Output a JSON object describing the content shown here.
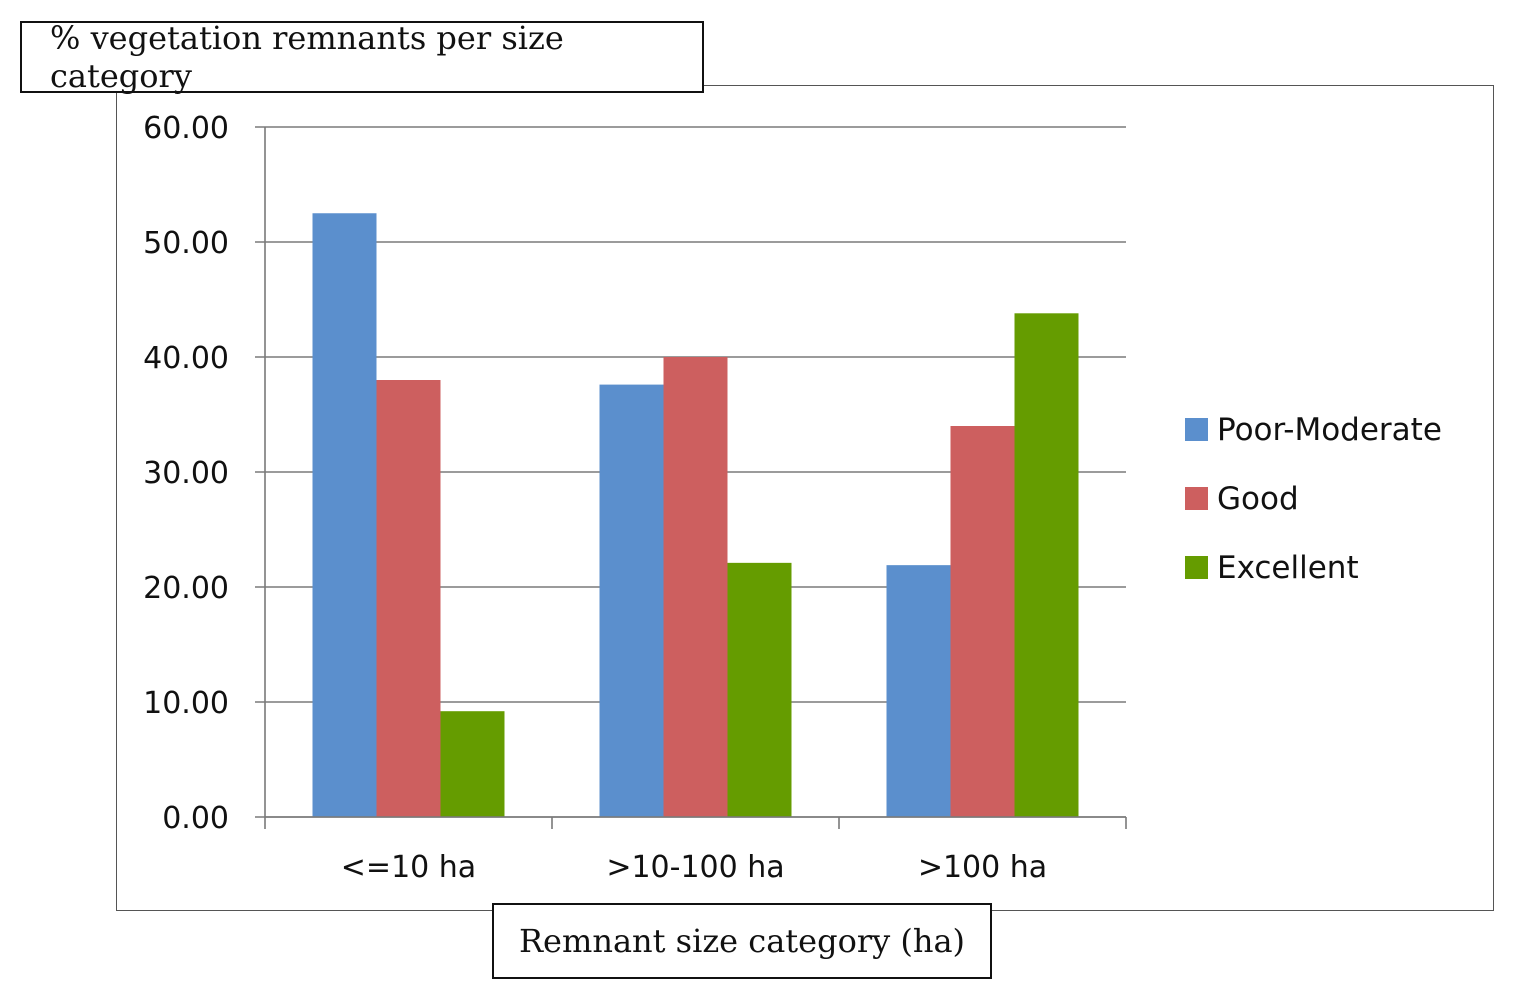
{
  "chart_data": {
    "type": "bar",
    "title": "% vegetation remnants per size category",
    "xlabel": "Remnant size category (ha)",
    "ylabel": "",
    "categories": [
      "<=10 ha",
      ">10-100 ha",
      ">100 ha"
    ],
    "series": [
      {
        "name": "Poor-Moderate",
        "color": "#5b8fcd",
        "values": [
          52.5,
          37.6,
          21.9
        ]
      },
      {
        "name": "Good",
        "color": "#cd5f5f",
        "values": [
          38.0,
          40.0,
          34.0
        ]
      },
      {
        "name": "Excellent",
        "color": "#659c00",
        "values": [
          9.2,
          22.1,
          43.8
        ]
      }
    ],
    "ylim": [
      0,
      60
    ],
    "yticks": [
      "0.00",
      "10.00",
      "20.00",
      "30.00",
      "40.00",
      "50.00",
      "60.00"
    ],
    "grid": true,
    "legend_position": "right"
  }
}
